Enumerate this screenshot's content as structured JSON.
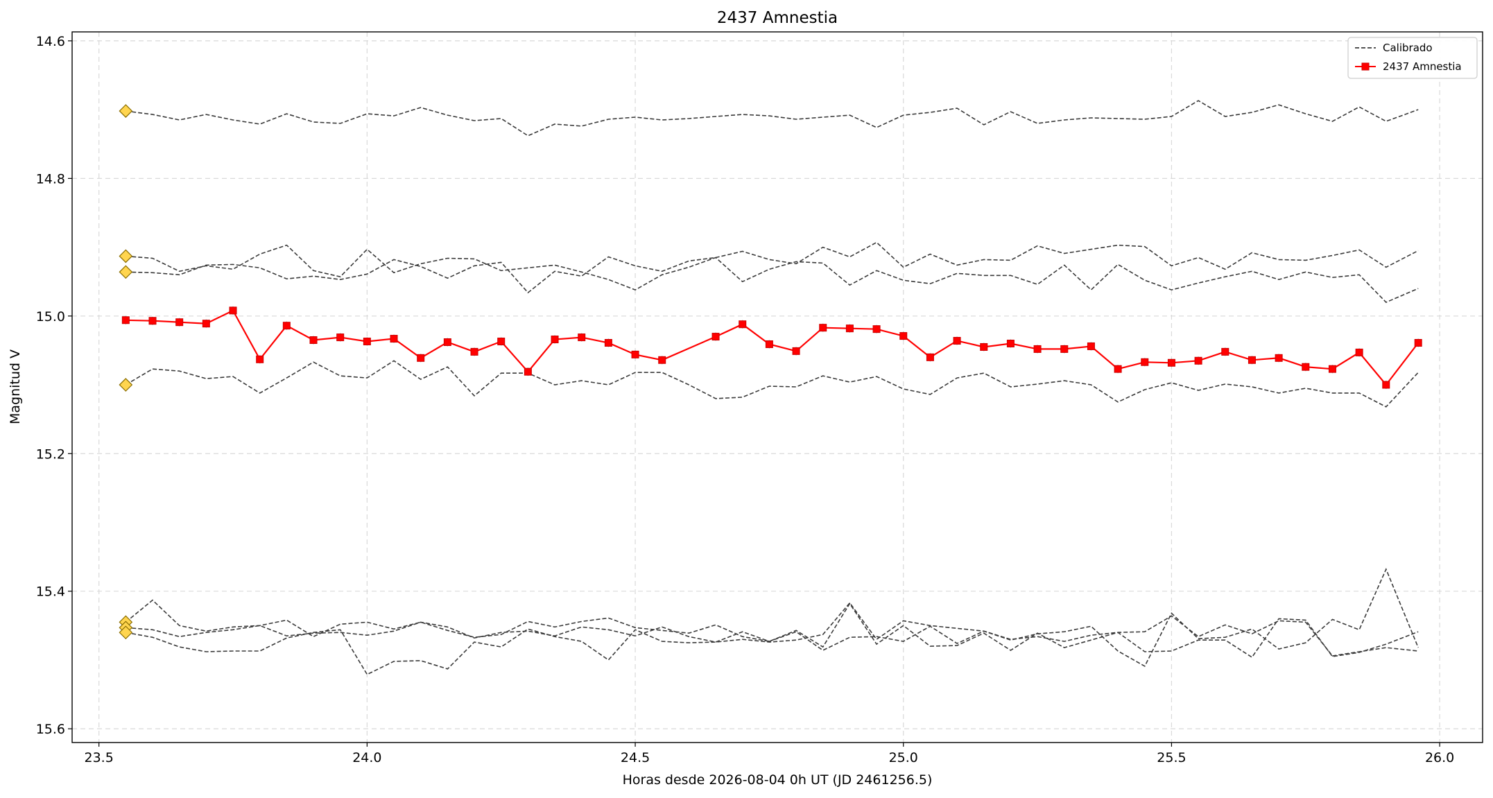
{
  "chart_data": {
    "type": "line",
    "title": "2437 Amnestia",
    "xlabel": "Horas desde 2026-08-04 0h UT (JD 2461256.5)",
    "ylabel": "Magnitud V",
    "xlim": [
      23.45,
      26.08
    ],
    "ylim": [
      15.62,
      14.587
    ],
    "y_inverted": true,
    "grid": true,
    "legend_position": "top-right",
    "x_ticks": [
      {
        "value": 23.5,
        "label": "23.5"
      },
      {
        "value": 24.0,
        "label": "24.0"
      },
      {
        "value": 24.5,
        "label": "24.5"
      },
      {
        "value": 25.0,
        "label": "25.0"
      },
      {
        "value": 25.5,
        "label": "25.5"
      },
      {
        "value": 26.0,
        "label": "26.0"
      }
    ],
    "y_ticks": [
      {
        "value": 14.6,
        "label": "14.6"
      },
      {
        "value": 14.8,
        "label": "14.8"
      },
      {
        "value": 15.0,
        "label": "15.0"
      },
      {
        "value": 15.2,
        "label": "15.2"
      },
      {
        "value": 15.4,
        "label": "15.4"
      },
      {
        "value": 15.6,
        "label": "15.6"
      }
    ],
    "legend": [
      {
        "label": "Calibrado",
        "style": "dashed",
        "color": "#3a3a3a"
      },
      {
        "label": "2437 Amnestia",
        "style": "solid-marker",
        "color": "#ff0000"
      }
    ],
    "colors": {
      "target": "#ff0000",
      "comparison": "#3a3a3a",
      "marker_fill": "#ffd54f",
      "marker_edge": "#8a6d00"
    },
    "x": [
      23.55,
      23.6,
      23.65,
      23.7,
      23.75,
      23.8,
      23.85,
      23.9,
      23.95,
      24.0,
      24.05,
      24.1,
      24.15,
      24.2,
      24.25,
      24.3,
      24.35,
      24.4,
      24.45,
      24.5,
      24.55,
      24.6,
      24.65,
      24.7,
      24.75,
      24.8,
      24.85,
      24.9,
      24.95,
      25.0,
      25.05,
      25.1,
      25.15,
      25.2,
      25.25,
      25.3,
      25.35,
      25.4,
      25.45,
      25.5,
      25.55,
      25.6,
      25.65,
      25.7,
      25.75,
      25.8,
      25.85,
      25.9,
      25.96
    ],
    "comparison_series": [
      {
        "values": [
          14.702,
          14.707,
          14.715,
          14.707,
          14.715,
          14.721,
          14.706,
          14.718,
          14.72,
          14.706,
          14.709,
          14.697,
          14.708,
          14.716,
          14.713,
          14.738,
          14.721,
          14.724,
          14.714,
          14.711,
          14.715,
          14.713,
          14.71,
          14.707,
          14.709,
          14.714,
          14.711,
          14.708,
          14.726,
          14.708,
          14.704,
          14.698,
          14.722,
          14.703,
          14.72,
          14.715,
          14.712,
          14.713,
          14.714,
          14.71,
          14.687,
          14.71,
          14.704,
          14.693,
          14.706,
          14.717,
          14.696,
          14.717,
          14.7
        ]
      },
      {
        "values": [
          14.913,
          14.916,
          14.935,
          14.927,
          14.932,
          14.91,
          14.897,
          14.934,
          14.943,
          14.903,
          14.937,
          14.924,
          14.916,
          14.917,
          14.934,
          14.93,
          14.926,
          14.936,
          14.947,
          14.962,
          14.94,
          14.929,
          14.915,
          14.95,
          14.932,
          14.921,
          14.923,
          14.955,
          14.934,
          14.948,
          14.953,
          14.938,
          14.941,
          14.941,
          14.954,
          14.926,
          14.962,
          14.925,
          14.948,
          14.962,
          14.952,
          14.943,
          14.935,
          14.947,
          14.936,
          14.944,
          14.94,
          14.98,
          14.96
        ]
      },
      {
        "values": [
          14.936,
          14.937,
          14.94,
          14.926,
          14.925,
          14.93,
          14.946,
          14.942,
          14.947,
          14.939,
          14.918,
          14.928,
          14.945,
          14.927,
          14.922,
          14.966,
          14.935,
          14.942,
          14.914,
          14.927,
          14.935,
          14.92,
          14.915,
          14.906,
          14.918,
          14.924,
          14.9,
          14.914,
          14.893,
          14.929,
          14.91,
          14.926,
          14.918,
          14.919,
          14.898,
          14.909,
          14.903,
          14.897,
          14.899,
          14.927,
          14.915,
          14.932,
          14.908,
          14.918,
          14.919,
          14.912,
          14.904,
          14.929,
          14.905
        ]
      },
      {
        "values": [
          15.1,
          15.077,
          15.08,
          15.091,
          15.088,
          15.112,
          15.09,
          15.067,
          15.087,
          15.09,
          15.065,
          15.092,
          15.074,
          15.116,
          15.083,
          15.083,
          15.1,
          15.094,
          15.1,
          15.082,
          15.082,
          15.1,
          15.12,
          15.118,
          15.102,
          15.103,
          15.087,
          15.096,
          15.088,
          15.106,
          15.114,
          15.09,
          15.083,
          15.103,
          15.099,
          15.094,
          15.1,
          15.125,
          15.107,
          15.097,
          15.108,
          15.099,
          15.103,
          15.112,
          15.105,
          15.112,
          15.112,
          15.132,
          15.082
        ]
      },
      {
        "values": [
          15.445,
          15.413,
          15.45,
          15.458,
          15.452,
          15.45,
          15.442,
          15.466,
          15.448,
          15.445,
          15.455,
          15.445,
          15.457,
          15.467,
          15.463,
          15.444,
          15.452,
          15.444,
          15.439,
          15.453,
          15.457,
          15.461,
          15.449,
          15.466,
          15.473,
          15.457,
          15.481,
          15.418,
          15.477,
          15.45,
          15.48,
          15.479,
          15.461,
          15.486,
          15.461,
          15.482,
          15.471,
          15.46,
          15.459,
          15.436,
          15.466,
          15.449,
          15.462,
          15.443,
          15.445,
          15.494,
          15.488,
          15.482,
          15.487
        ]
      },
      {
        "values": [
          15.453,
          15.456,
          15.466,
          15.46,
          15.456,
          15.45,
          15.465,
          15.461,
          15.46,
          15.464,
          15.458,
          15.445,
          15.452,
          15.468,
          15.46,
          15.458,
          15.465,
          15.452,
          15.456,
          15.465,
          15.452,
          15.466,
          15.474,
          15.459,
          15.473,
          15.459,
          15.486,
          15.467,
          15.466,
          15.473,
          15.451,
          15.476,
          15.458,
          15.471,
          15.462,
          15.459,
          15.451,
          15.487,
          15.509,
          15.432,
          15.469,
          15.467,
          15.455,
          15.484,
          15.475,
          15.441,
          15.456,
          15.368,
          15.482
        ]
      },
      {
        "values": [
          15.46,
          15.467,
          15.481,
          15.488,
          15.487,
          15.487,
          15.468,
          15.46,
          15.456,
          15.521,
          15.502,
          15.501,
          15.513,
          15.474,
          15.481,
          15.455,
          15.466,
          15.473,
          15.5,
          15.456,
          15.473,
          15.475,
          15.474,
          15.47,
          15.474,
          15.471,
          15.463,
          15.417,
          15.47,
          15.443,
          15.45,
          15.454,
          15.458,
          15.47,
          15.466,
          15.473,
          15.464,
          15.46,
          15.488,
          15.487,
          15.471,
          15.471,
          15.496,
          15.44,
          15.442,
          15.495,
          15.489,
          15.477,
          15.459
        ]
      }
    ],
    "comparison_start_markers": [
      14.702,
      14.913,
      14.936,
      15.1,
      15.445,
      15.453,
      15.46
    ],
    "series": [
      {
        "name": "2437 Amnestia",
        "values": [
          15.006,
          15.007,
          15.009,
          15.011,
          14.992,
          15.063,
          15.014,
          15.035,
          15.031,
          15.037,
          15.033,
          15.061,
          15.038,
          15.052,
          15.037,
          15.081,
          15.034,
          15.031,
          15.039,
          15.056,
          15.064,
          null,
          15.03,
          15.012,
          15.041,
          15.051,
          15.017,
          15.018,
          15.019,
          15.029,
          15.06,
          15.036,
          15.045,
          15.04,
          15.048,
          15.048,
          15.044,
          15.077,
          15.067,
          15.068,
          15.065,
          15.052,
          15.064,
          15.061,
          15.074,
          15.077,
          15.053,
          15.1,
          15.039
        ]
      }
    ]
  }
}
